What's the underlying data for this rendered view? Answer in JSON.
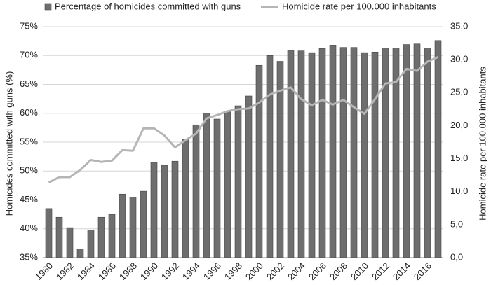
{
  "chart_data": {
    "type": "bar",
    "ylabel": "Homicides committed with guns (%)",
    "y2label": "Homicide rate per 100.000 inhabitants",
    "categories": [
      "1980",
      null,
      "1982",
      null,
      "1984",
      null,
      "1986",
      null,
      "1988",
      null,
      "1990",
      null,
      "1992",
      null,
      "1994",
      null,
      "1996",
      null,
      "1998",
      null,
      "2000",
      null,
      "2002",
      null,
      "2004",
      null,
      "2006",
      null,
      "2008",
      null,
      "2010",
      null,
      "2012",
      null,
      "2014",
      null,
      "2016",
      null
    ],
    "series": [
      {
        "name": "Percentage of homicides committed with guns",
        "type": "bar",
        "color": "#6e6e6e",
        "values": [
          43.5,
          42,
          40.2,
          36.5,
          39.8,
          42,
          42.5,
          46,
          45.5,
          46.5,
          51.5,
          51,
          51.7,
          55.5,
          58,
          60,
          59,
          60.3,
          61.3,
          63,
          68.3,
          70,
          69,
          70.9,
          70.8,
          70.5,
          71.2,
          71.8,
          71.4,
          71.4,
          70.5,
          70.6,
          71.3,
          71.3,
          71.9,
          72,
          71.3,
          72.6
        ]
      },
      {
        "name": "Homicide rate per 100.000 inhabitants",
        "type": "line",
        "axis": "y2",
        "color": "#b5b5b5",
        "values": [
          11.4,
          12.2,
          12.2,
          13.3,
          14.8,
          14.5,
          14.7,
          16.3,
          16.2,
          19.6,
          19.6,
          18.5,
          16.7,
          17.8,
          18.8,
          21.1,
          21.6,
          22.2,
          22.5,
          22.6,
          23.5,
          24.7,
          25.3,
          25.8,
          24,
          23.1,
          23.9,
          23.2,
          23.9,
          22.8,
          21.8,
          24,
          26.4,
          26.6,
          28.6,
          28.3,
          29.7,
          30.4
        ]
      }
    ],
    "ylim": [
      35,
      75
    ],
    "yticks": [
      {
        "value": 35,
        "label": "35%"
      },
      {
        "value": 40,
        "label": "40%"
      },
      {
        "value": 45,
        "label": "45%"
      },
      {
        "value": 50,
        "label": "50%"
      },
      {
        "value": 55,
        "label": "55%"
      },
      {
        "value": 60,
        "label": "60%"
      },
      {
        "value": 65,
        "label": "65%"
      },
      {
        "value": 70,
        "label": "70%"
      },
      {
        "value": 75,
        "label": "75%"
      }
    ],
    "y2lim": [
      0,
      35
    ],
    "y2ticks": [
      {
        "value": 0,
        "label": "0,0"
      },
      {
        "value": 5,
        "label": "5,0"
      },
      {
        "value": 10,
        "label": "10,0"
      },
      {
        "value": 15,
        "label": "15,0"
      },
      {
        "value": 20,
        "label": "20,0"
      },
      {
        "value": 25,
        "label": "25,0"
      },
      {
        "value": 30,
        "label": "30,0"
      },
      {
        "value": 35,
        "label": "35,0"
      }
    ],
    "grid": true,
    "legend": "top"
  }
}
